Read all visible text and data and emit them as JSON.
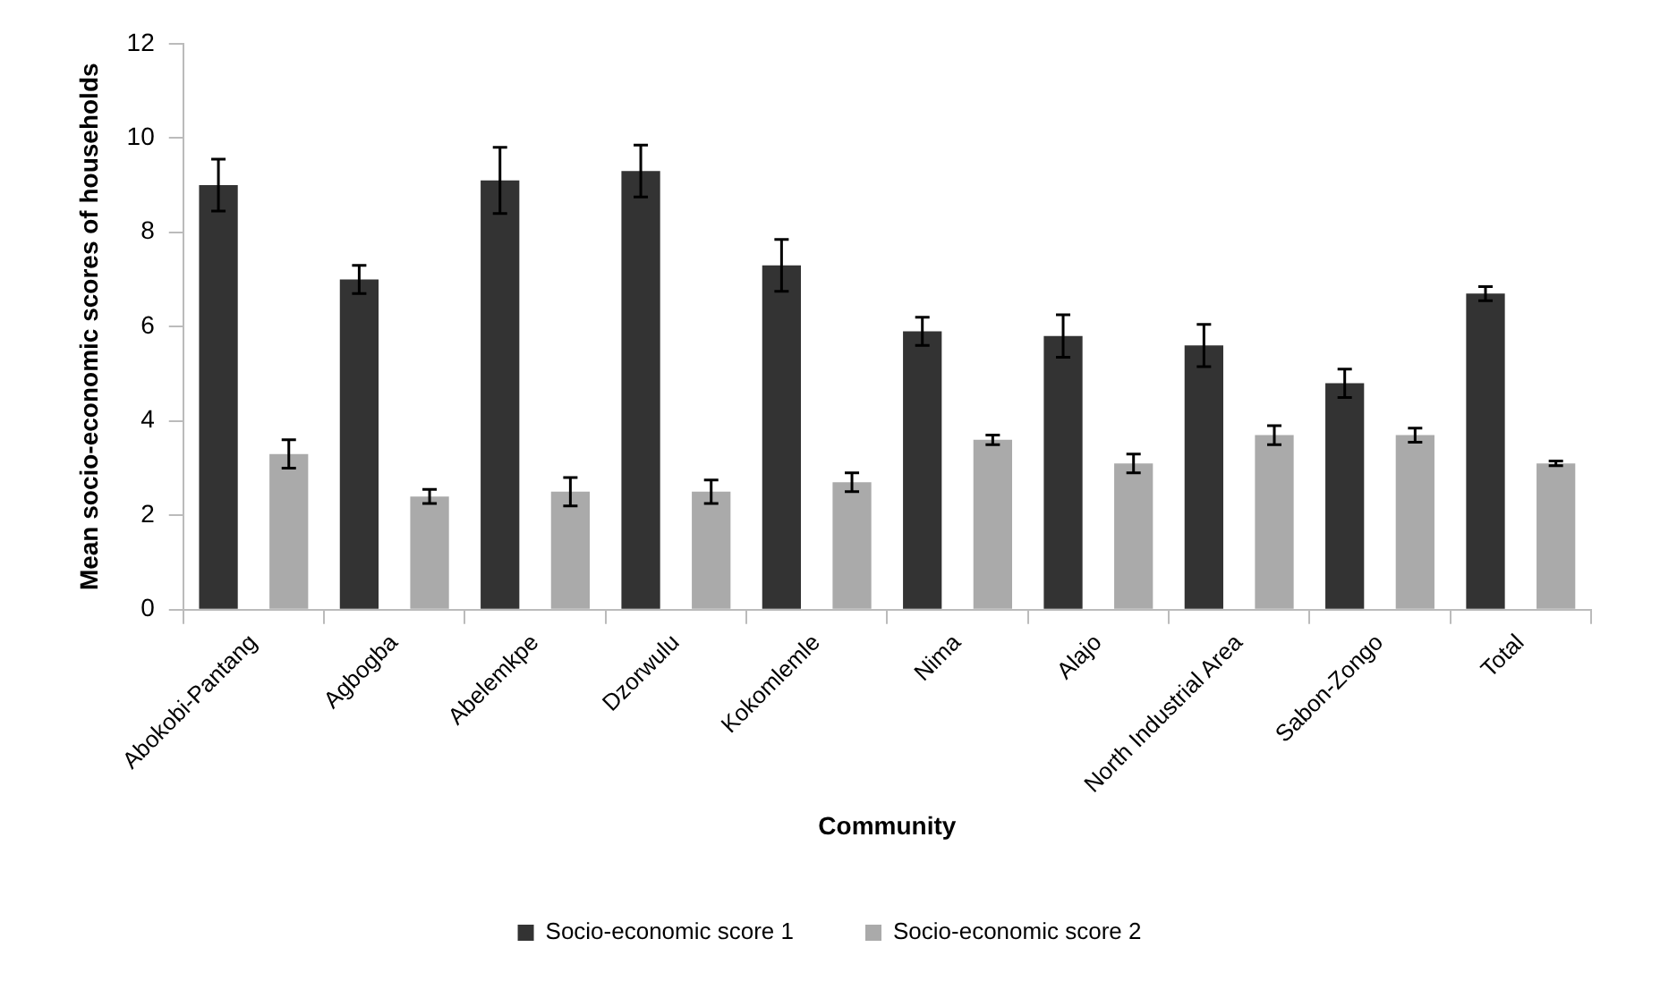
{
  "chart_data": {
    "type": "bar",
    "xlabel": "Community",
    "ylabel": "Mean socio-economic scores of households",
    "categories": [
      "Abokobi-Pantang",
      "Agbogba",
      "Abelemkpe",
      "Dzorwulu",
      "Kokomlemle",
      "Nima",
      "Alajo",
      "North Industrial Area",
      "Sabon-Zongo",
      "Total"
    ],
    "series": [
      {
        "name": "Socio-economic score 1",
        "color": "#333333",
        "values": [
          9.0,
          7.0,
          9.1,
          9.3,
          7.3,
          5.9,
          5.8,
          5.6,
          4.8,
          6.7
        ],
        "errors": [
          0.55,
          0.3,
          0.7,
          0.55,
          0.55,
          0.3,
          0.45,
          0.45,
          0.3,
          0.15
        ]
      },
      {
        "name": "Socio-economic score 2",
        "color": "#aaaaaa",
        "values": [
          3.3,
          2.4,
          2.5,
          2.5,
          2.7,
          3.6,
          3.1,
          3.7,
          3.7,
          3.1
        ],
        "errors": [
          0.3,
          0.15,
          0.3,
          0.25,
          0.2,
          0.1,
          0.2,
          0.2,
          0.15,
          0.05
        ]
      }
    ],
    "ylim": [
      0,
      12
    ],
    "yticks": [
      0,
      2,
      4,
      6,
      8,
      10,
      12
    ],
    "grid": false,
    "legend": "bottom"
  }
}
